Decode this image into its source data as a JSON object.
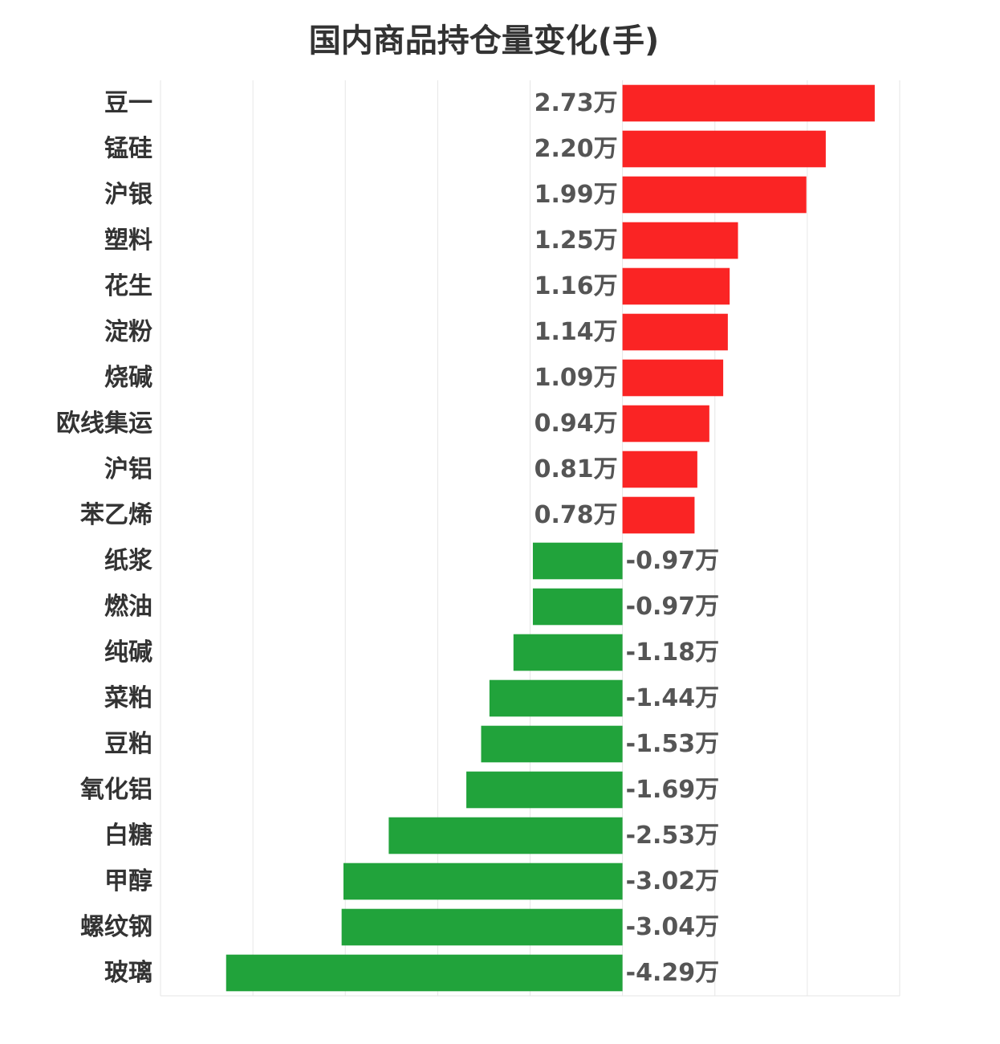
{
  "chart_data": {
    "type": "bar",
    "orientation": "horizontal",
    "title": "国内商品持仓量变化(手)",
    "xlabel": "",
    "ylabel": "",
    "unit": "万",
    "xlim": [
      -5,
      3
    ],
    "grid": true,
    "legend": "none",
    "categories": [
      "豆一",
      "锰硅",
      "沪银",
      "塑料",
      "花生",
      "淀粉",
      "烧碱",
      "欧线集运",
      "沪铝",
      "苯乙烯",
      "纸浆",
      "燃油",
      "纯碱",
      "菜粕",
      "豆粕",
      "氧化铝",
      "白糖",
      "甲醇",
      "螺纹钢",
      "玻璃"
    ],
    "values": [
      2.73,
      2.2,
      1.99,
      1.25,
      1.16,
      1.14,
      1.09,
      0.94,
      0.81,
      0.78,
      -0.97,
      -0.97,
      -1.18,
      -1.44,
      -1.53,
      -1.69,
      -2.53,
      -3.02,
      -3.04,
      -4.29
    ],
    "data_labels": [
      "2.73万",
      "2.20万",
      "1.99万",
      "1.25万",
      "1.16万",
      "1.14万",
      "1.09万",
      "0.94万",
      "0.81万",
      "0.78万",
      "-0.97万",
      "-0.97万",
      "-1.18万",
      "-1.44万",
      "-1.53万",
      "-1.69万",
      "-2.53万",
      "-3.02万",
      "-3.04万",
      "-4.29万"
    ],
    "colors": {
      "positive": "#fa2424",
      "negative": "#21a33b",
      "grid": "#e6e6e6"
    }
  }
}
